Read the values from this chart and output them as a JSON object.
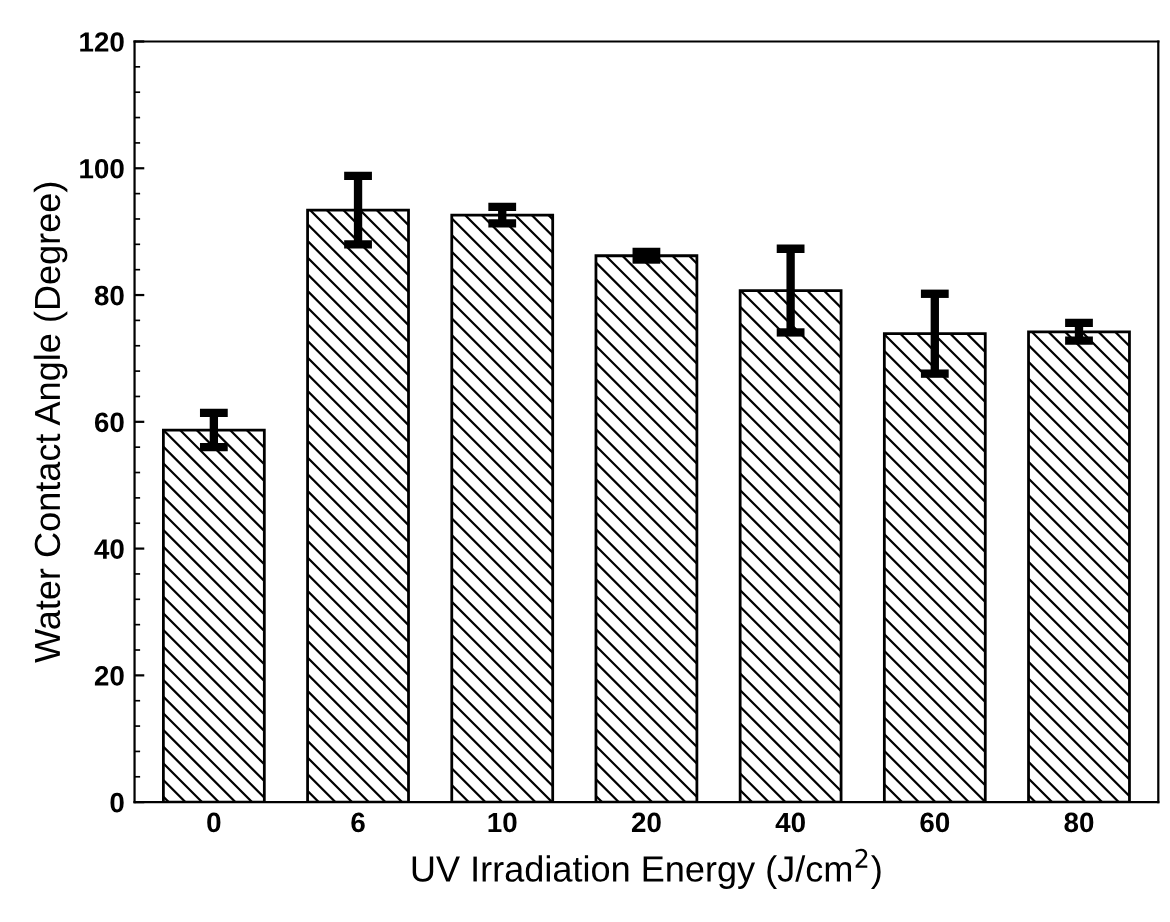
{
  "chart_data": {
    "type": "bar",
    "xlabel": "UV Irradiation Energy (J/cm$^{2}$)",
    "ylabel": "Water Contact Angle (Degree)",
    "categories": [
      "0",
      "6",
      "10",
      "20",
      "40",
      "60",
      "80"
    ],
    "values": [
      58.7,
      93.4,
      92.6,
      86.2,
      80.7,
      73.9,
      74.2
    ],
    "errors": [
      2.7,
      5.4,
      1.3,
      0.6,
      6.6,
      6.3,
      1.4
    ],
    "color": "#000000",
    "ylim": [
      0,
      120
    ],
    "yticks": [
      0,
      20,
      40,
      60,
      80,
      100,
      120
    ],
    "grid": false
  }
}
